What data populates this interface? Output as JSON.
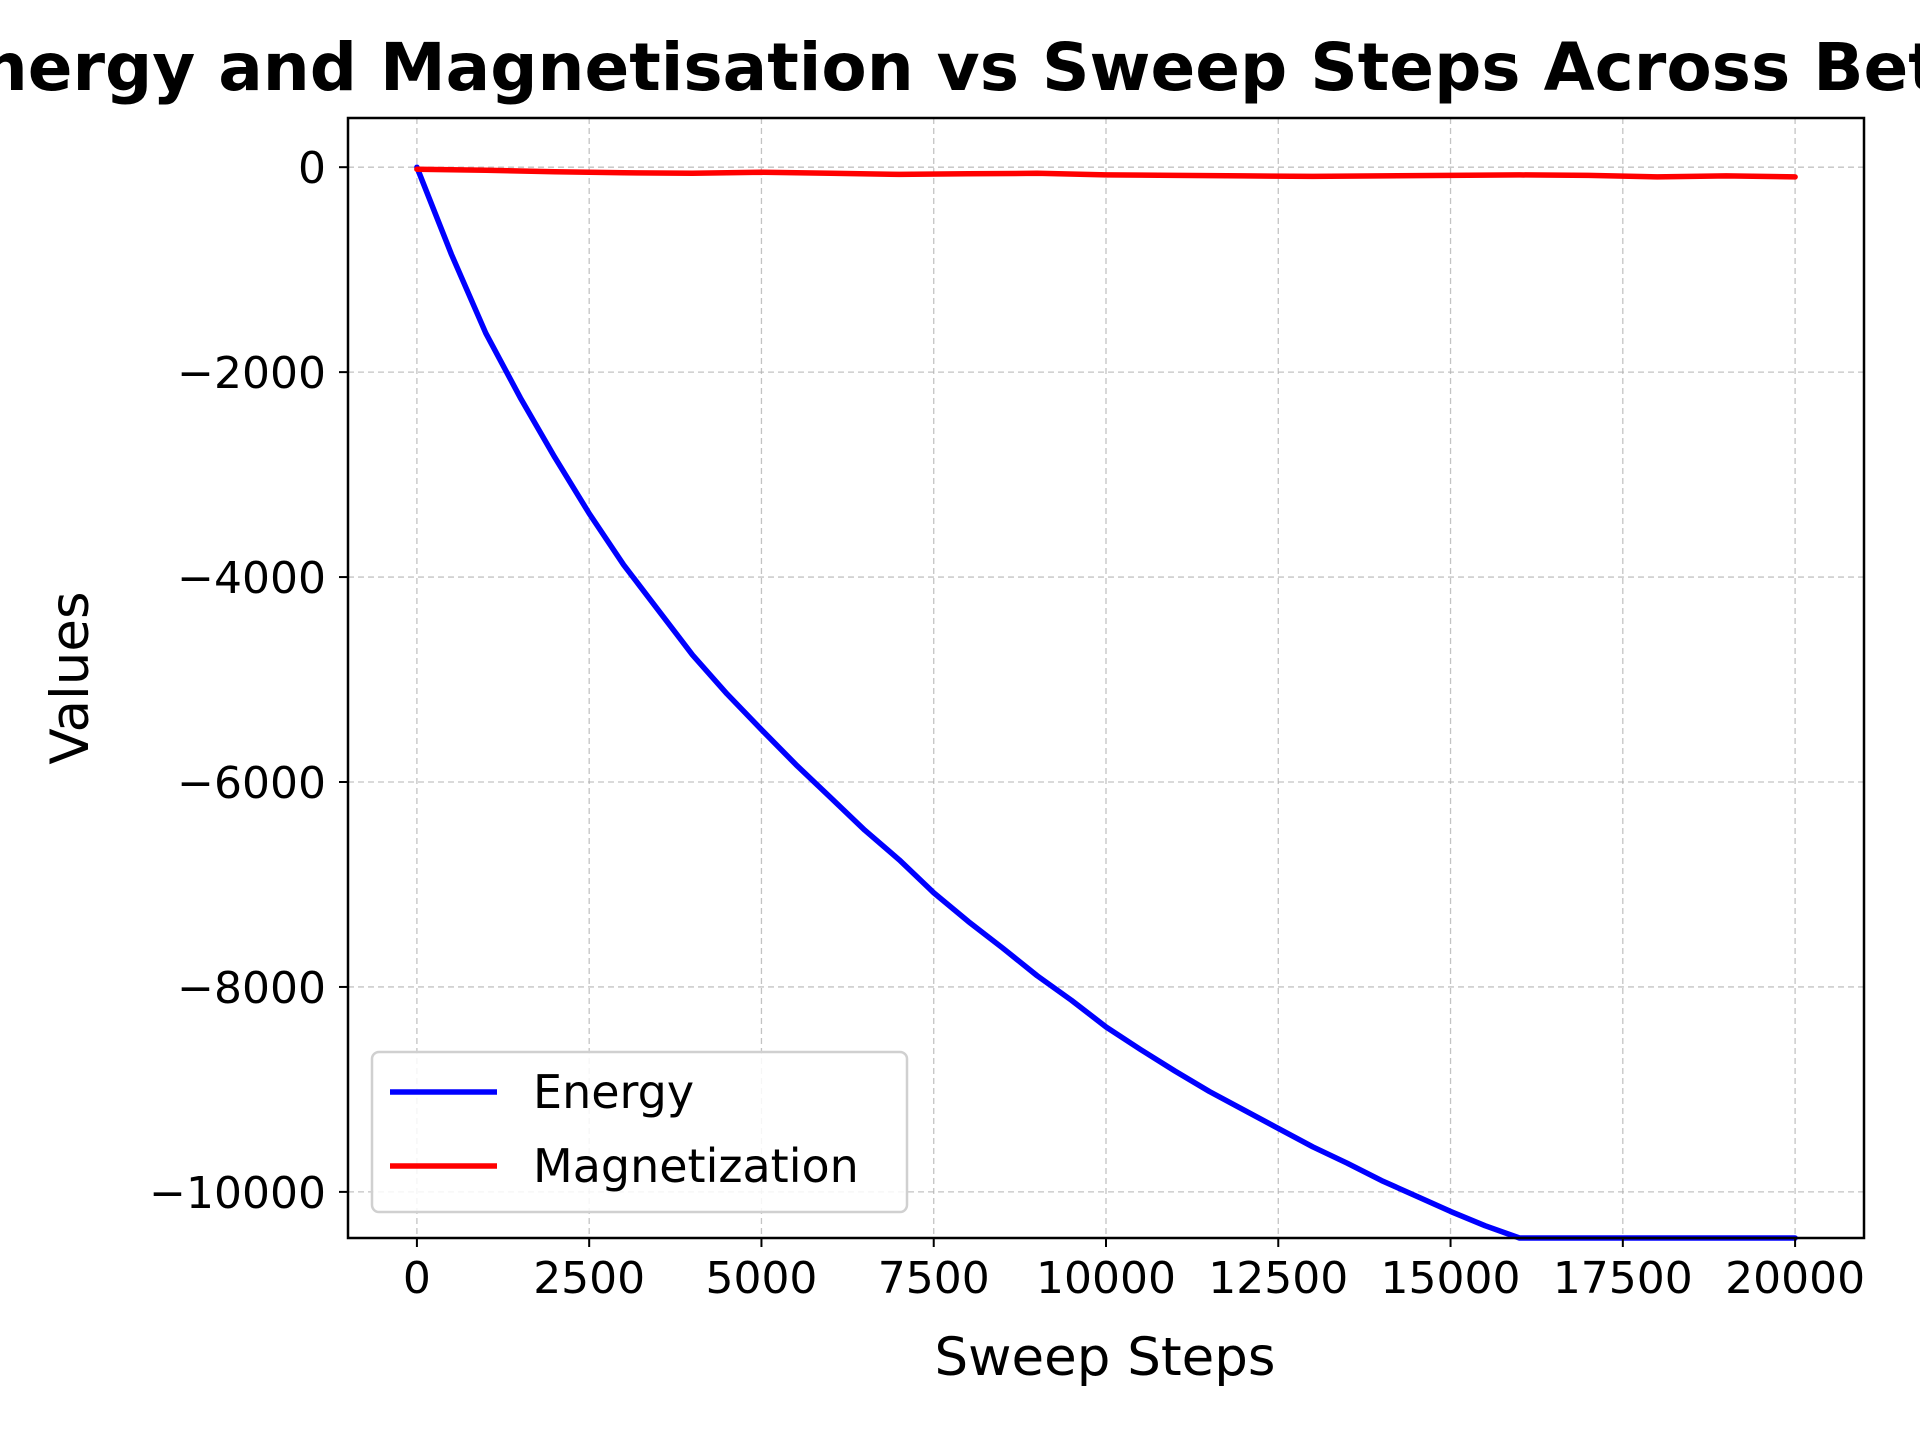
{
  "chart_data": {
    "type": "line",
    "title": "Energy and Magnetisation vs Sweep Steps Across Beta",
    "xlabel": "Sweep Steps",
    "ylabel": "Values",
    "xlim": [
      -1000,
      21000
    ],
    "ylim": [
      -10450,
      480
    ],
    "xticks": [
      0,
      2500,
      5000,
      7500,
      10000,
      12500,
      15000,
      17500,
      20000
    ],
    "xtick_labels": [
      "0",
      "2500",
      "5000",
      "7500",
      "10000",
      "12500",
      "15000",
      "17500",
      "20000"
    ],
    "yticks": [
      0,
      -2000,
      -4000,
      -6000,
      -8000,
      -10000
    ],
    "ytick_labels": [
      "0",
      "−2000",
      "−4000",
      "−6000",
      "−8000",
      "−10000"
    ],
    "grid": true,
    "legend_position": "lower-left",
    "series": [
      {
        "name": "Energy",
        "color": "#0000ff",
        "x": [
          0,
          500,
          1000,
          1500,
          2000,
          2500,
          3000,
          3500,
          4000,
          4500,
          5000,
          5500,
          6000,
          6500,
          7000,
          7500,
          8000,
          8500,
          9000,
          9500,
          10000,
          10500,
          11000,
          11500,
          12000,
          12500,
          13000,
          13500,
          14000,
          14500,
          15000,
          15500,
          16000,
          16500,
          17000,
          17500,
          18000,
          18500,
          19000,
          19500,
          20000
        ],
        "y": [
          0,
          -850,
          -1620,
          -2250,
          -2830,
          -3380,
          -3880,
          -4320,
          -4760,
          -5140,
          -5490,
          -5830,
          -6150,
          -6470,
          -6760,
          -7080,
          -7360,
          -7620,
          -7890,
          -8130,
          -8390,
          -8610,
          -8820,
          -9020,
          -9200,
          -9380,
          -9560,
          -9720,
          -9890,
          -10040,
          -10190,
          -10330,
          -10470,
          -10600,
          -10720,
          -10850,
          -10970,
          -11080,
          -11190,
          -11300,
          -11400
        ]
      },
      {
        "name": "Magnetization",
        "color": "#ff0000",
        "x": [
          0,
          1000,
          2000,
          3000,
          4000,
          5000,
          6000,
          7000,
          8000,
          9000,
          10000,
          11000,
          12000,
          13000,
          14000,
          15000,
          16000,
          17000,
          18000,
          19000,
          20000
        ],
        "y": [
          -20,
          -30,
          -45,
          -55,
          -60,
          -50,
          -60,
          -70,
          -65,
          -60,
          -75,
          -80,
          -85,
          -90,
          -85,
          -80,
          -75,
          -80,
          -95,
          -85,
          -95
        ]
      }
    ]
  }
}
